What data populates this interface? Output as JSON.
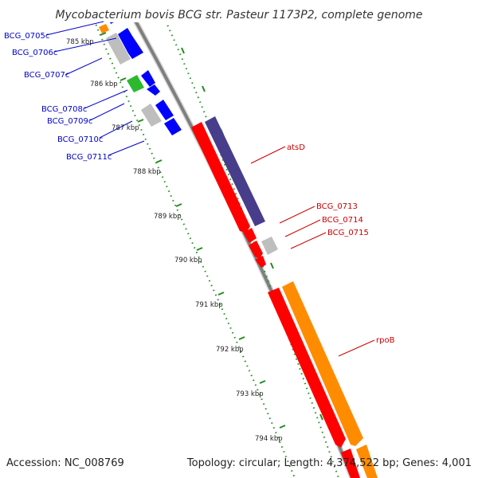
{
  "title": "Mycobacterium bovis BCG str. Pasteur 1173P2, complete genome",
  "footer": {
    "accession": "Accession: NC_008769",
    "summary": "Topology: circular; Length: 4,374,522 bp; Genes: 4,001"
  },
  "ticks": [
    "785 kbp",
    "786 kbp",
    "787 kbp",
    "788 kbp",
    "789 kbp",
    "790 kbp",
    "791 kbp",
    "792 kbp",
    "793 kbp",
    "794 kbp"
  ],
  "genes": [
    {
      "label": "BCG_0705c",
      "color": "#ff8c00"
    },
    {
      "label": "BCG_0706c",
      "color": "#0000ff"
    },
    {
      "label": "BCG_0707c",
      "color": "#bebebe"
    },
    {
      "label": "BCG_0708c",
      "color": "#2db92d"
    },
    {
      "label": "BCG_0709c",
      "color": "#0000ff"
    },
    {
      "label": "BCG_0710c",
      "color": "#0000ff"
    },
    {
      "label": "BCG_0711c",
      "color": "#0000ff"
    },
    {
      "label": "atsD",
      "color": "#483d8b"
    },
    {
      "label": "BCG_0713",
      "color": "#ff0000"
    },
    {
      "label": "BCG_0714",
      "color": "#ff0000"
    },
    {
      "label": "BCG_0715",
      "color": "#bebebe"
    },
    {
      "label": "rpoB",
      "color": "#ff8c00"
    }
  ],
  "colors": {
    "reverse_label": "#0000cc",
    "forward_label": "#cc0000",
    "tick_marks": "#228b22",
    "backbone": "#808080"
  }
}
